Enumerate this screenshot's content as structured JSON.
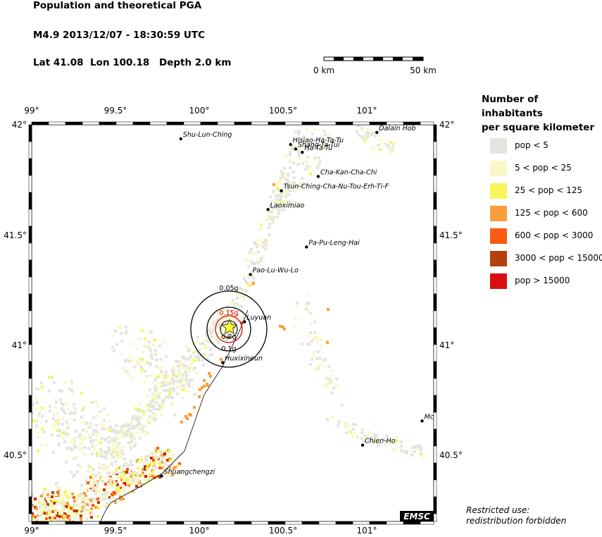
{
  "header": {
    "title": "Population and theoretical PGA",
    "event": "M4.9  2013/12/07 - 18:30:59 UTC",
    "lat": "Lat 41.08",
    "lon": "Lon 100.18",
    "depth": "Depth  2.0 km"
  },
  "scalebar": {
    "start_label": "0 km",
    "end_label": "50 km"
  },
  "axes": {
    "x_ticks": [
      "99°",
      "99.5°",
      "100°",
      "100.5°",
      "101°"
    ],
    "y_ticks": [
      "42°",
      "41.5°",
      "41°",
      "40.5°"
    ]
  },
  "epicenter": {
    "lat": 41.08,
    "lon": 100.18,
    "color": "#ffff33"
  },
  "pga_contours": {
    "labels": [
      "0.05g",
      "0.15g",
      "0.1g",
      "0.2g"
    ],
    "colors": {
      "black": "#000000",
      "red": "#e00000"
    }
  },
  "cities": [
    {
      "name": "Shu-Lun-Ching",
      "lat": 41.936,
      "lon": 99.89
    },
    {
      "name": "Hisiao-Ha-Ta-Tu",
      "lat": 41.91,
      "lon": 100.545
    },
    {
      "name": "Shang-Ta-Tui",
      "lat": 41.89,
      "lon": 100.575
    },
    {
      "name": "Ha-Ta-Tu",
      "lat": 41.875,
      "lon": 100.615
    },
    {
      "name": "Dalain Hob",
      "lat": 41.965,
      "lon": 101.06
    },
    {
      "name": "Cha-Kan-Cha-Chi",
      "lat": 41.765,
      "lon": 100.71
    },
    {
      "name": "Tsun-Ching-Cha-Nu-Tou-Erh-Ti-F",
      "lat": 41.7,
      "lon": 100.49
    },
    {
      "name": "Laoximiao",
      "lat": 41.615,
      "lon": 100.41
    },
    {
      "name": "Pa-Pu-Leng-Hai",
      "lat": 41.445,
      "lon": 100.64
    },
    {
      "name": "Pao-Lu-Wu-Lo",
      "lat": 41.32,
      "lon": 100.305
    },
    {
      "name": "Luyuan",
      "lat": 41.105,
      "lon": 100.27
    },
    {
      "name": "Huxixineun",
      "lat": 40.92,
      "lon": 100.14
    },
    {
      "name": "Shuangchengzi",
      "lat": 40.405,
      "lon": 99.775
    },
    {
      "name": "Chien-Ho",
      "lat": 40.545,
      "lon": 100.975
    },
    {
      "name": "Mc",
      "lat": 40.655,
      "lon": 101.33
    }
  ],
  "legend": {
    "title_line1": "Number of inhabitants",
    "title_line2": "per square kilometer",
    "items": [
      {
        "label": "pop < 5",
        "color": "#e4e4e0"
      },
      {
        "label": "5 < pop < 25",
        "color": "#f9f7c6"
      },
      {
        "label": "25 < pop < 125",
        "color": "#f6f65c"
      },
      {
        "label": "125 < pop < 600",
        "color": "#f89e3a"
      },
      {
        "label": "600 < pop < 3000",
        "color": "#fa5a14"
      },
      {
        "label": "3000 < pop < 15000",
        "color": "#b3400e"
      },
      {
        "label": "pop > 15000",
        "color": "#d90f0f"
      }
    ]
  },
  "badge": "EMSC",
  "notice": {
    "line1": "Restricted use:",
    "line2": "redistribution forbidden"
  }
}
